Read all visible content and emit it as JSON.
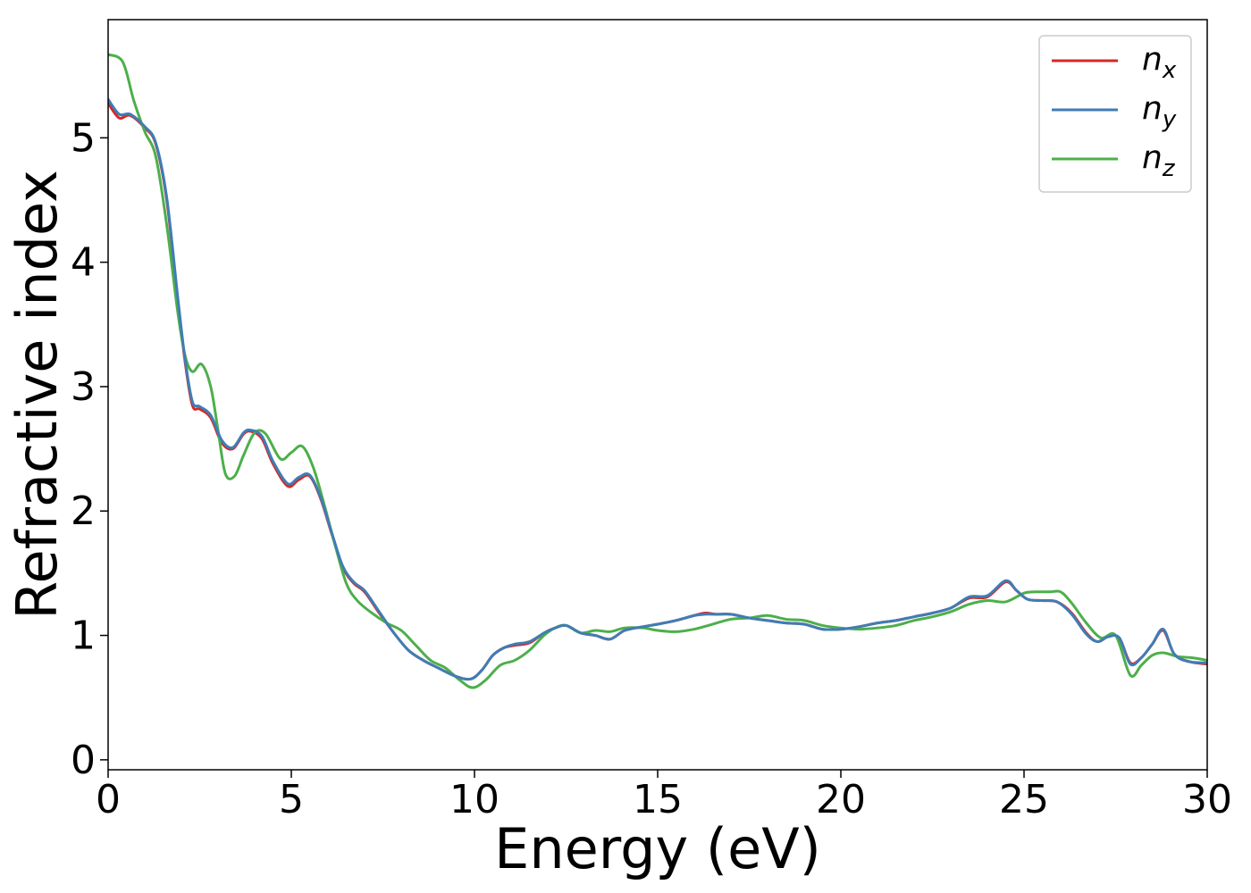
{
  "chart_data": {
    "type": "line",
    "title": "",
    "xlabel": "Energy (eV)",
    "ylabel": "Refractive index",
    "xlim": [
      0,
      30
    ],
    "ylim": [
      -0.08,
      5.95
    ],
    "xticks": [
      0,
      5,
      10,
      15,
      20,
      25,
      30
    ],
    "yticks": [
      0,
      1,
      2,
      3,
      4,
      5
    ],
    "grid": false,
    "legend": {
      "placement": "top-right"
    },
    "series": [
      {
        "name": "n_x",
        "label_base": "n",
        "label_sub": "x",
        "color": "#d62728",
        "x": [
          0,
          0.3,
          0.6,
          1.0,
          1.3,
          1.6,
          1.9,
          2.1,
          2.3,
          2.5,
          2.8,
          3.1,
          3.4,
          3.7,
          3.9,
          4.2,
          4.5,
          4.9,
          5.2,
          5.5,
          5.8,
          6.1,
          6.4,
          6.7,
          7.0,
          7.4,
          7.8,
          8.2,
          8.6,
          9.0,
          9.5,
          9.9,
          10.2,
          10.5,
          10.8,
          11.1,
          11.5,
          11.9,
          12.2,
          12.5,
          12.9,
          13.3,
          13.7,
          14.1,
          14.6,
          15.0,
          15.5,
          16.0,
          16.3,
          16.6,
          17.0,
          17.5,
          18.0,
          18.5,
          19.0,
          19.5,
          20.0,
          20.5,
          21.0,
          21.5,
          22.0,
          22.5,
          23.0,
          23.5,
          24.0,
          24.5,
          24.8,
          25.1,
          25.5,
          25.9,
          26.3,
          26.7,
          27.0,
          27.3,
          27.6,
          27.9,
          28.2,
          28.5,
          28.8,
          29.1,
          29.5,
          30.0
        ],
        "y": [
          5.28,
          5.16,
          5.18,
          5.08,
          4.95,
          4.5,
          3.7,
          3.2,
          2.85,
          2.82,
          2.75,
          2.55,
          2.5,
          2.62,
          2.64,
          2.58,
          2.38,
          2.2,
          2.25,
          2.28,
          2.1,
          1.82,
          1.55,
          1.42,
          1.35,
          1.18,
          1.02,
          0.88,
          0.8,
          0.74,
          0.67,
          0.65,
          0.72,
          0.84,
          0.9,
          0.92,
          0.94,
          1.02,
          1.06,
          1.08,
          1.02,
          1.0,
          0.97,
          1.04,
          1.07,
          1.09,
          1.12,
          1.16,
          1.18,
          1.17,
          1.17,
          1.14,
          1.12,
          1.1,
          1.09,
          1.05,
          1.05,
          1.07,
          1.1,
          1.12,
          1.15,
          1.18,
          1.22,
          1.3,
          1.31,
          1.43,
          1.36,
          1.29,
          1.28,
          1.27,
          1.18,
          1.02,
          0.95,
          0.99,
          0.98,
          0.78,
          0.82,
          0.93,
          1.04,
          0.85,
          0.79,
          0.77
        ]
      },
      {
        "name": "n_y",
        "label_base": "n",
        "label_sub": "y",
        "color": "#3f7db5",
        "x": [
          0,
          0.3,
          0.6,
          1.0,
          1.3,
          1.6,
          1.9,
          2.1,
          2.3,
          2.5,
          2.8,
          3.1,
          3.4,
          3.7,
          3.9,
          4.2,
          4.5,
          4.9,
          5.2,
          5.5,
          5.8,
          6.1,
          6.4,
          6.7,
          7.0,
          7.4,
          7.8,
          8.2,
          8.6,
          9.0,
          9.5,
          9.9,
          10.2,
          10.5,
          10.8,
          11.1,
          11.5,
          11.9,
          12.2,
          12.5,
          12.9,
          13.3,
          13.7,
          14.1,
          14.6,
          15.0,
          15.5,
          16.0,
          16.3,
          16.6,
          17.0,
          17.5,
          18.0,
          18.5,
          19.0,
          19.5,
          20.0,
          20.5,
          21.0,
          21.5,
          22.0,
          22.5,
          23.0,
          23.5,
          24.0,
          24.5,
          24.8,
          25.1,
          25.5,
          25.9,
          26.3,
          26.7,
          27.0,
          27.3,
          27.6,
          27.9,
          28.2,
          28.5,
          28.8,
          29.1,
          29.5,
          30.0
        ],
        "y": [
          5.31,
          5.19,
          5.19,
          5.09,
          4.96,
          4.52,
          3.72,
          3.22,
          2.88,
          2.84,
          2.77,
          2.57,
          2.51,
          2.63,
          2.65,
          2.6,
          2.4,
          2.22,
          2.27,
          2.29,
          2.11,
          1.83,
          1.56,
          1.43,
          1.36,
          1.19,
          1.02,
          0.88,
          0.8,
          0.74,
          0.67,
          0.65,
          0.72,
          0.84,
          0.9,
          0.93,
          0.95,
          1.02,
          1.06,
          1.08,
          1.02,
          1.0,
          0.97,
          1.04,
          1.07,
          1.09,
          1.12,
          1.16,
          1.17,
          1.17,
          1.17,
          1.14,
          1.12,
          1.1,
          1.09,
          1.05,
          1.05,
          1.07,
          1.1,
          1.12,
          1.15,
          1.18,
          1.22,
          1.31,
          1.32,
          1.44,
          1.36,
          1.29,
          1.28,
          1.27,
          1.17,
          1.01,
          0.95,
          0.99,
          0.98,
          0.77,
          0.82,
          0.93,
          1.05,
          0.85,
          0.79,
          0.78
        ]
      },
      {
        "name": "n_z",
        "label_base": "n",
        "label_sub": "z",
        "color": "#4daf4a",
        "x": [
          0,
          0.4,
          0.7,
          1.0,
          1.3,
          1.6,
          1.9,
          2.1,
          2.3,
          2.55,
          2.8,
          3.0,
          3.2,
          3.45,
          3.7,
          4.0,
          4.3,
          4.7,
          5.0,
          5.3,
          5.6,
          5.9,
          6.2,
          6.5,
          6.8,
          7.2,
          7.6,
          8.0,
          8.4,
          8.8,
          9.2,
          9.6,
          9.95,
          10.3,
          10.7,
          11.1,
          11.5,
          11.9,
          12.2,
          12.5,
          12.9,
          13.3,
          13.7,
          14.1,
          14.6,
          15.0,
          15.5,
          16.0,
          16.5,
          17.0,
          17.5,
          18.0,
          18.5,
          19.0,
          19.5,
          20.0,
          20.5,
          21.0,
          21.5,
          22.0,
          22.5,
          23.0,
          23.5,
          24.0,
          24.5,
          25.0,
          25.3,
          25.7,
          26.0,
          26.3,
          26.7,
          27.1,
          27.5,
          27.9,
          28.2,
          28.5,
          28.8,
          29.2,
          29.6,
          30.0
        ],
        "y": [
          5.67,
          5.61,
          5.3,
          5.05,
          4.85,
          4.3,
          3.6,
          3.25,
          3.12,
          3.18,
          3.0,
          2.65,
          2.3,
          2.28,
          2.45,
          2.63,
          2.62,
          2.42,
          2.47,
          2.52,
          2.35,
          2.05,
          1.72,
          1.42,
          1.28,
          1.18,
          1.1,
          1.04,
          0.92,
          0.8,
          0.74,
          0.64,
          0.58,
          0.64,
          0.76,
          0.8,
          0.88,
          1.0,
          1.06,
          1.08,
          1.02,
          1.04,
          1.03,
          1.06,
          1.06,
          1.04,
          1.03,
          1.05,
          1.09,
          1.13,
          1.14,
          1.16,
          1.13,
          1.12,
          1.08,
          1.06,
          1.05,
          1.06,
          1.08,
          1.12,
          1.15,
          1.19,
          1.25,
          1.28,
          1.27,
          1.34,
          1.35,
          1.35,
          1.35,
          1.26,
          1.1,
          0.98,
          1.0,
          0.68,
          0.76,
          0.84,
          0.86,
          0.83,
          0.82,
          0.8
        ]
      }
    ]
  }
}
